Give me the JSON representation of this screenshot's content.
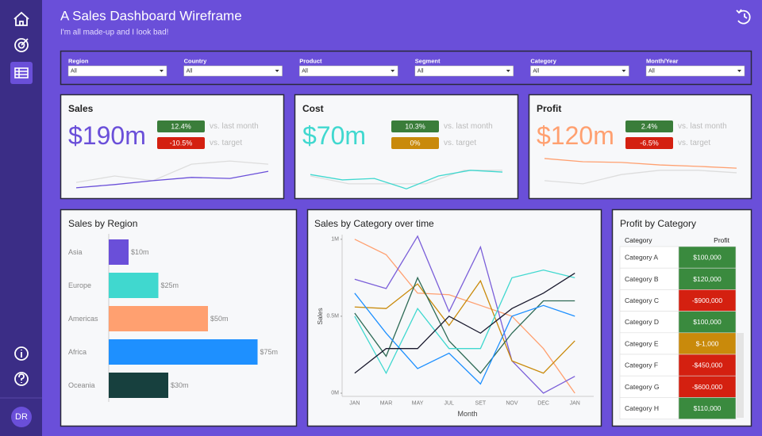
{
  "header": {
    "title": "A Sales Dashboard Wireframe",
    "subtitle": "I'm all made-up and I look bad!"
  },
  "sidebar": {
    "avatar": "DR"
  },
  "filters": [
    {
      "label": "Region",
      "value": "All"
    },
    {
      "label": "Country",
      "value": "All"
    },
    {
      "label": "Product",
      "value": "All"
    },
    {
      "label": "Segment",
      "value": "All"
    },
    {
      "label": "Category",
      "value": "All"
    },
    {
      "label": "Month/Year",
      "value": "All"
    }
  ],
  "kpis": [
    {
      "title": "Sales",
      "value": "$190m",
      "color": "#6a4fd9",
      "badges": [
        {
          "value": "12.4%",
          "label": "vs. last month",
          "color": "#3a7d3a"
        },
        {
          "value": "-10.5%",
          "label": "vs. target",
          "color": "#d42010"
        }
      ],
      "ylim": [
        0,
        100
      ],
      "sparklines": [
        {
          "color": "#dddddd",
          "values": [
            22,
            40,
            27,
            73,
            82,
            73
          ]
        },
        {
          "color": "#6a4fd9",
          "values": [
            7,
            16,
            27,
            36,
            33,
            53
          ]
        }
      ]
    },
    {
      "title": "Cost",
      "value": "$70m",
      "color": "#40d8cf",
      "badges": [
        {
          "value": "10.3%",
          "label": "vs. last month",
          "color": "#3a7d3a"
        },
        {
          "value": "0%",
          "label": "vs. target",
          "color": "#c98a0b"
        }
      ],
      "ylim": [
        0,
        100
      ],
      "sparklines": [
        {
          "color": "#dddddd",
          "values": [
            40,
            18,
            18,
            18,
            56,
            56
          ]
        },
        {
          "color": "#40d8cf",
          "values": [
            44,
            29,
            33,
            4,
            40,
            56,
            51
          ]
        }
      ]
    },
    {
      "title": "Profit",
      "value": "$120m",
      "color": "#ffa070",
      "badges": [
        {
          "value": "2.4%",
          "label": "vs. last month",
          "color": "#3a7d3a"
        },
        {
          "value": "-6.5%",
          "label": "vs. target",
          "color": "#d42010"
        }
      ],
      "ylim": [
        0,
        100
      ],
      "sparklines": [
        {
          "color": "#dddddd",
          "values": [
            27,
            18,
            44,
            56,
            56,
            49
          ]
        },
        {
          "color": "#ffa070",
          "values": [
            89,
            80,
            78,
            71,
            67,
            62
          ]
        }
      ]
    }
  ],
  "chart_data": [
    {
      "type": "hbar",
      "title": "Sales by Region",
      "categories": [
        "Asia",
        "Europe",
        "Americas",
        "Africa",
        "Oceania"
      ],
      "values": [
        10,
        25,
        50,
        75,
        30
      ],
      "value_labels": [
        "$10m",
        "$25m",
        "$50m",
        "$75m",
        "$30m"
      ],
      "colors": [
        "#6a4fd9",
        "#40d8cf",
        "#ffa070",
        "#1e90ff",
        "#17403e"
      ],
      "xlim": [
        0,
        80
      ]
    },
    {
      "type": "line",
      "title": "Sales by Category over time",
      "x_label": "Month",
      "y_label": "Sales",
      "categories": [
        "JAN",
        "MAR",
        "MAY",
        "JUL",
        "SET",
        "NOV",
        "DEC",
        "JAN"
      ],
      "ylim": [
        0,
        1030000
      ],
      "yticks": [
        {
          "value": 0,
          "label": "0M"
        },
        {
          "value": 500000,
          "label": "0.5M"
        },
        {
          "value": 1000000,
          "label": "1M"
        }
      ],
      "series": [
        {
          "color": "#ffa070",
          "values": [
            1000000,
            900000,
            650000,
            640000,
            570000,
            500000,
            290000,
            0
          ]
        },
        {
          "color": "#7b5fd9",
          "values": [
            740000,
            680000,
            1020000,
            530000,
            950000,
            210000,
            0,
            110000
          ]
        },
        {
          "color": "#c98a0b",
          "values": [
            560000,
            550000,
            710000,
            440000,
            730000,
            210000,
            130000,
            340000
          ]
        },
        {
          "color": "#2d6a55",
          "values": [
            520000,
            240000,
            750000,
            340000,
            130000,
            390000,
            600000,
            600000
          ]
        },
        {
          "color": "#40d8cf",
          "values": [
            500000,
            130000,
            550000,
            290000,
            290000,
            750000,
            800000,
            750000
          ]
        },
        {
          "color": "#1e90ff",
          "values": [
            650000,
            390000,
            160000,
            260000,
            60000,
            500000,
            570000,
            500000
          ]
        },
        {
          "color": "#1a1a2e",
          "values": [
            130000,
            290000,
            290000,
            500000,
            390000,
            550000,
            650000,
            780000
          ]
        }
      ]
    }
  ],
  "profit_table": {
    "title": "Profit by Category",
    "columns": [
      "Category",
      "Profit"
    ],
    "rows": [
      {
        "category": "Category A",
        "profit": "$100,000",
        "color": "#3a8a3e"
      },
      {
        "category": "Category B",
        "profit": "$120,000",
        "color": "#3a8a3e"
      },
      {
        "category": "Category C",
        "profit": "-$900,000",
        "color": "#d42010"
      },
      {
        "category": "Category D",
        "profit": "$100,000",
        "color": "#3a8a3e"
      },
      {
        "category": "Category E",
        "profit": "$-1,000",
        "color": "#c98a0b"
      },
      {
        "category": "Category F",
        "profit": "-$450,000",
        "color": "#d42010"
      },
      {
        "category": "Category G",
        "profit": "-$600,000",
        "color": "#d42010"
      },
      {
        "category": "Category H",
        "profit": "$110,000",
        "color": "#3a8a3e"
      }
    ]
  }
}
